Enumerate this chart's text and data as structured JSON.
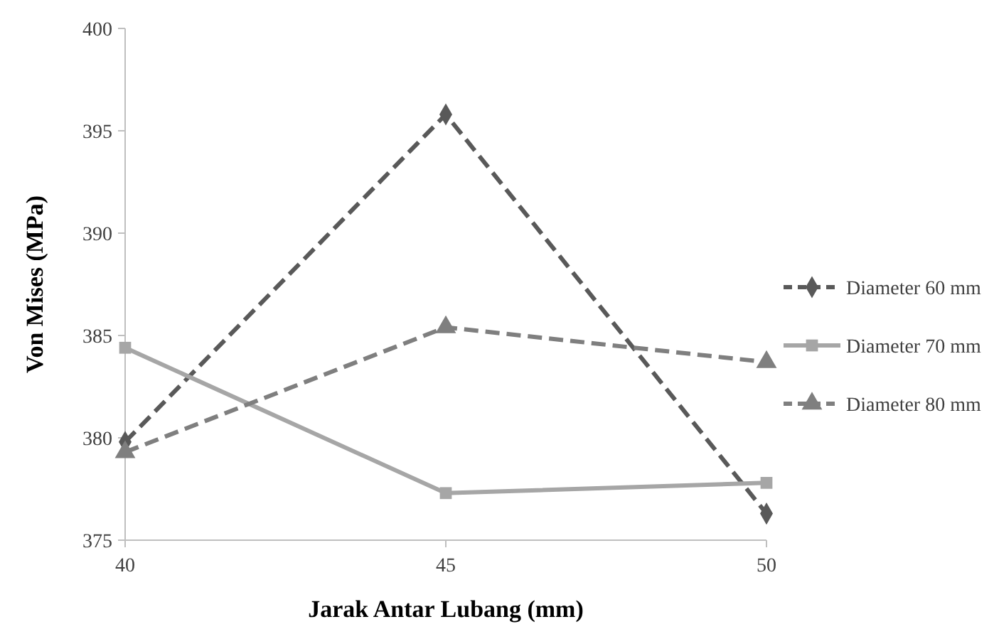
{
  "chart_data": {
    "type": "line",
    "xlabel": "Jarak Antar Lubang (mm)",
    "ylabel": "Von Mises (MPa)",
    "x": [
      40,
      45,
      50
    ],
    "xlim": [
      40,
      50
    ],
    "xticks": [
      40,
      45,
      50
    ],
    "ylim": [
      375,
      400
    ],
    "yticks": [
      375,
      380,
      385,
      390,
      395,
      400
    ],
    "grid": false,
    "legend": "right",
    "series": [
      {
        "name": "Diameter 60 mm",
        "color": "#595959",
        "marker": "diamond",
        "line_style": "dashed",
        "values": [
          379.8,
          395.8,
          376.3
        ]
      },
      {
        "name": "Diameter 70 mm",
        "color": "#a6a6a6",
        "marker": "square",
        "line_style": "solid",
        "values": [
          384.4,
          377.3,
          377.8
        ]
      },
      {
        "name": "Diameter 80 mm",
        "color": "#7f7f7f",
        "marker": "triangle",
        "line_style": "dashed",
        "values": [
          379.3,
          385.4,
          383.7
        ]
      }
    ]
  }
}
